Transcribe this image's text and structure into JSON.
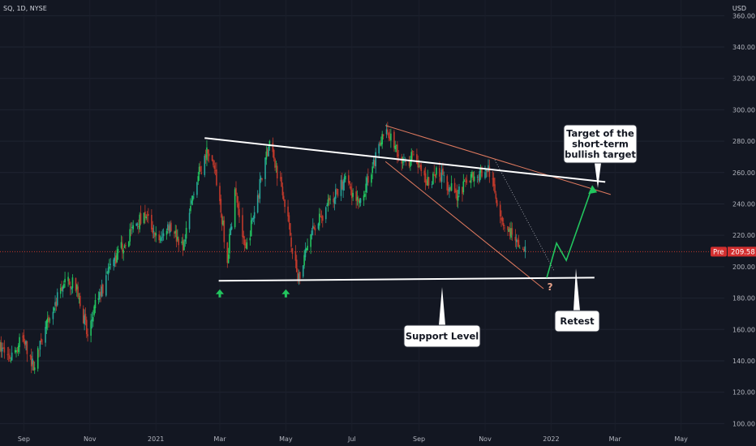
{
  "header": {
    "symbol": "SQ, 1D, NYSE",
    "currency": "USD"
  },
  "colors": {
    "background": "#131722",
    "up": "#26a69a",
    "up_bright": "#22c55e",
    "down": "#c0392b",
    "trendline": "#ffffff",
    "channel": "#e07a5f",
    "projection": "#22c55e",
    "price_line": "#c0392b",
    "price_tag": "#d32f2f"
  },
  "chart_data": {
    "type": "candlestick",
    "title": "SQ, 1D, NYSE",
    "y_unit": "USD",
    "ylim": [
      95,
      370
    ],
    "x_range": [
      "2020-08-10",
      "2022-06-10"
    ],
    "y_ticks": [
      360,
      340,
      320,
      300,
      280,
      260,
      240,
      220,
      200,
      180,
      160,
      140,
      120,
      100
    ],
    "y_tick_labels": [
      "360.00",
      "340.00",
      "320.00",
      "300.00",
      "280.00",
      "260.00",
      "240.00",
      "220.00",
      "200.00",
      "180.00",
      "160.00",
      "140.00",
      "120.00",
      "100.00"
    ],
    "x_ticks": [
      {
        "date": "2020-09-01",
        "label": "Sep"
      },
      {
        "date": "2020-11-01",
        "label": "Nov"
      },
      {
        "date": "2021-01-01",
        "label": "2021"
      },
      {
        "date": "2021-03-01",
        "label": "Mar"
      },
      {
        "date": "2021-05-01",
        "label": "May"
      },
      {
        "date": "2021-07-01",
        "label": "Jul"
      },
      {
        "date": "2021-09-01",
        "label": "Sep"
      },
      {
        "date": "2021-11-01",
        "label": "Nov"
      },
      {
        "date": "2022-01-01",
        "label": "2022"
      },
      {
        "date": "2022-03-01",
        "label": "Mar"
      },
      {
        "date": "2022-05-01",
        "label": "May"
      }
    ],
    "price_path": [
      [
        "2020-08-10",
        148
      ],
      [
        "2020-08-20",
        142
      ],
      [
        "2020-08-31",
        155
      ],
      [
        "2020-09-10",
        136
      ],
      [
        "2020-09-22",
        162
      ],
      [
        "2020-10-05",
        185
      ],
      [
        "2020-10-13",
        192
      ],
      [
        "2020-10-22",
        182
      ],
      [
        "2020-10-30",
        155
      ],
      [
        "2020-11-06",
        175
      ],
      [
        "2020-11-20",
        200
      ],
      [
        "2020-12-05",
        218
      ],
      [
        "2020-12-21",
        235
      ],
      [
        "2021-01-05",
        215
      ],
      [
        "2021-01-12",
        228
      ],
      [
        "2021-01-27",
        212
      ],
      [
        "2021-02-05",
        250
      ],
      [
        "2021-02-18",
        275
      ],
      [
        "2021-02-26",
        255
      ],
      [
        "2021-03-08",
        205
      ],
      [
        "2021-03-15",
        248
      ],
      [
        "2021-03-25",
        210
      ],
      [
        "2021-04-05",
        245
      ],
      [
        "2021-04-15",
        278
      ],
      [
        "2021-04-28",
        250
      ],
      [
        "2021-05-12",
        192
      ],
      [
        "2021-05-25",
        222
      ],
      [
        "2021-06-08",
        238
      ],
      [
        "2021-06-25",
        255
      ],
      [
        "2021-07-08",
        240
      ],
      [
        "2021-07-20",
        265
      ],
      [
        "2021-08-02",
        288
      ],
      [
        "2021-08-16",
        265
      ],
      [
        "2021-08-26",
        270
      ],
      [
        "2021-09-08",
        255
      ],
      [
        "2021-09-20",
        260
      ],
      [
        "2021-10-05",
        245
      ],
      [
        "2021-10-20",
        258
      ],
      [
        "2021-11-04",
        262
      ],
      [
        "2021-11-18",
        228
      ],
      [
        "2021-11-26",
        220
      ],
      [
        "2021-12-03",
        208
      ],
      [
        "2021-12-08",
        210
      ]
    ],
    "last_price": 209.58,
    "last_price_label": "209.58",
    "last_price_tag": "Pre",
    "drawings": {
      "resistance_line": {
        "from": [
          "2021-02-15",
          282
        ],
        "to": [
          "2022-02-20",
          254
        ]
      },
      "support_line": {
        "from": [
          "2021-02-28",
          191
        ],
        "to": [
          "2022-02-10",
          193
        ]
      },
      "channel_upper": {
        "from": [
          "2021-08-01",
          290
        ],
        "to": [
          "2022-02-25",
          246
        ]
      },
      "channel_lower": {
        "from": [
          "2021-08-01",
          267
        ],
        "to": [
          "2021-12-25",
          186
        ]
      },
      "dotted_trend": {
        "from": [
          "2021-11-10",
          268
        ],
        "to": [
          "2022-01-04",
          197
        ]
      },
      "projection_path": [
        [
          "2021-12-28",
          193
        ],
        [
          "2022-01-06",
          215
        ],
        [
          "2022-01-15",
          204
        ],
        [
          "2022-02-08",
          251
        ]
      ],
      "support_arrows": [
        [
          "2021-03-01",
          183
        ],
        [
          "2021-05-01",
          183
        ]
      ],
      "question_mark_at": [
        "2021-12-31",
        185
      ]
    },
    "annotations": [
      {
        "id": "target",
        "lines": [
          "Target of the",
          "short-term",
          "bullish target"
        ]
      },
      {
        "id": "support",
        "lines": [
          "Support Level"
        ]
      },
      {
        "id": "retest",
        "lines": [
          "Retest"
        ]
      }
    ],
    "question_mark": "?"
  }
}
